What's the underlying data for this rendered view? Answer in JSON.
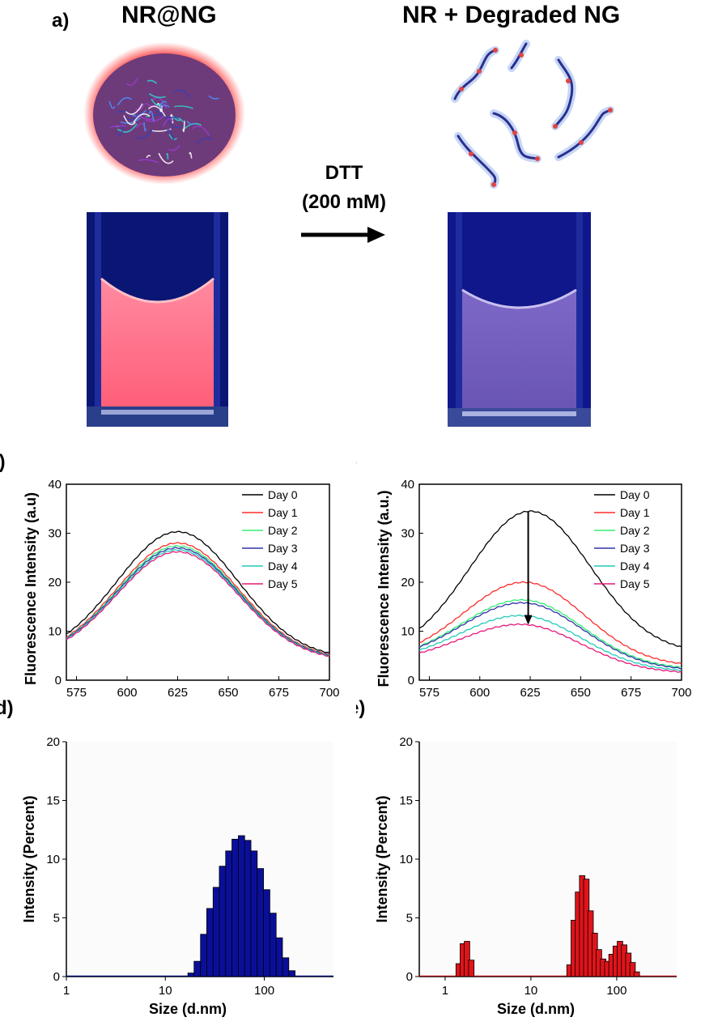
{
  "panel_a": {
    "letter": "a)",
    "left_title": "NR@NG",
    "right_title": "NR + Degraded NG",
    "reagent": "DTT",
    "concentration": "(200 mM)"
  },
  "chart_data": [
    {
      "id": "b",
      "type": "line",
      "letter": "b)",
      "xlabel": "Wavelength (nm)",
      "ylabel": "Fluorescence Intensity (a.u)",
      "xlim": [
        570,
        700
      ],
      "ylim": [
        0,
        40
      ],
      "xticks": [
        575,
        600,
        625,
        650,
        675,
        700
      ],
      "yticks": [
        0,
        10,
        20,
        30,
        40
      ],
      "grid": false,
      "legend_position": "top-right",
      "series": [
        {
          "name": "Day 0",
          "color": "#000000",
          "peak_x": 625,
          "peak": 30.3,
          "start": 4.6,
          "end": 4.4
        },
        {
          "name": "Day 1",
          "color": "#ff2a2a",
          "peak_x": 625,
          "peak": 28.0,
          "start": 4.4,
          "end": 4.2
        },
        {
          "name": "Day 2",
          "color": "#33ee77",
          "peak_x": 625,
          "peak": 27.4,
          "start": 4.3,
          "end": 4.1
        },
        {
          "name": "Day 3",
          "color": "#3333aa",
          "peak_x": 625,
          "peak": 27.0,
          "start": 4.3,
          "end": 4.1
        },
        {
          "name": "Day 4",
          "color": "#22ccbb",
          "peak_x": 625,
          "peak": 26.6,
          "start": 4.2,
          "end": 4.0
        },
        {
          "name": "Day 5",
          "color": "#e6187a",
          "peak_x": 625,
          "peak": 26.2,
          "start": 4.1,
          "end": 3.9
        }
      ]
    },
    {
      "id": "c",
      "type": "line",
      "letter": "c)",
      "xlabel": "Wavelength (nm)",
      "ylabel": "Fluorescence Intensity (a.u.)",
      "xlim": [
        570,
        700
      ],
      "ylim": [
        0,
        40
      ],
      "xticks": [
        575,
        600,
        625,
        650,
        675,
        700
      ],
      "yticks": [
        0,
        10,
        20,
        30,
        40
      ],
      "grid": false,
      "legend_position": "top-right",
      "arrow": {
        "x": 624,
        "y_from": 34.5,
        "y_to": 11.3
      },
      "series": [
        {
          "name": "Day 0",
          "color": "#000000",
          "peak_x": 625,
          "peak": 34.5,
          "start": 5.0,
          "end": 5.5
        },
        {
          "name": "Day 1",
          "color": "#ff2a2a",
          "peak_x": 622,
          "peak": 20.0,
          "start": 4.1,
          "end": 2.8
        },
        {
          "name": "Day 2",
          "color": "#33ee77",
          "peak_x": 621,
          "peak": 16.4,
          "start": 4.0,
          "end": 2.2
        },
        {
          "name": "Day 3",
          "color": "#3333aa",
          "peak_x": 621,
          "peak": 15.8,
          "start": 4.0,
          "end": 2.0
        },
        {
          "name": "Day 4",
          "color": "#22ccbb",
          "peak_x": 620,
          "peak": 13.2,
          "start": 3.8,
          "end": 1.7
        },
        {
          "name": "Day 5",
          "color": "#e6187a",
          "peak_x": 620,
          "peak": 11.4,
          "start": 3.6,
          "end": 1.4
        }
      ]
    },
    {
      "id": "d",
      "type": "bar",
      "letter": "d)",
      "xlabel": "Size (d.nm)",
      "ylabel": "Intensity (Percent)",
      "x_scale": "log",
      "xlim": [
        1,
        500
      ],
      "ylim": [
        0,
        20
      ],
      "xticks": [
        1,
        10,
        100
      ],
      "yticks": [
        0,
        5,
        10,
        15,
        20
      ],
      "bar_color": "#0a0f9a",
      "bins": [
        {
          "size": 18.2,
          "value": 0.3
        },
        {
          "size": 21.0,
          "value": 1.3
        },
        {
          "size": 24.4,
          "value": 3.6
        },
        {
          "size": 28.2,
          "value": 5.8
        },
        {
          "size": 32.7,
          "value": 7.6
        },
        {
          "size": 37.8,
          "value": 9.4
        },
        {
          "size": 43.8,
          "value": 10.7
        },
        {
          "size": 50.7,
          "value": 11.7
        },
        {
          "size": 58.8,
          "value": 12.0
        },
        {
          "size": 68.1,
          "value": 11.6
        },
        {
          "size": 78.8,
          "value": 10.7
        },
        {
          "size": 91.3,
          "value": 9.2
        },
        {
          "size": 105.7,
          "value": 7.4
        },
        {
          "size": 122.4,
          "value": 5.4
        },
        {
          "size": 141.8,
          "value": 3.3
        },
        {
          "size": 164.2,
          "value": 1.6
        },
        {
          "size": 190.1,
          "value": 0.5
        }
      ]
    },
    {
      "id": "e",
      "type": "bar",
      "letter": "e)",
      "xlabel": "Size (d.nm)",
      "ylabel": "Intensity (Percent)",
      "x_scale": "log",
      "xlim": [
        0.5,
        500
      ],
      "ylim": [
        0,
        20
      ],
      "xticks": [
        1,
        10,
        100
      ],
      "yticks": [
        0,
        5,
        10,
        15,
        20
      ],
      "bar_color": "#e0141a",
      "bins": [
        {
          "size": 1.44,
          "value": 1.1
        },
        {
          "size": 1.61,
          "value": 2.8
        },
        {
          "size": 1.8,
          "value": 3.0
        },
        {
          "size": 2.02,
          "value": 1.4
        },
        {
          "size": 28.2,
          "value": 1.0
        },
        {
          "size": 31.6,
          "value": 4.8
        },
        {
          "size": 35.4,
          "value": 7.2
        },
        {
          "size": 39.6,
          "value": 8.6
        },
        {
          "size": 44.3,
          "value": 8.3
        },
        {
          "size": 49.6,
          "value": 5.6
        },
        {
          "size": 55.5,
          "value": 3.7
        },
        {
          "size": 62.1,
          "value": 2.3
        },
        {
          "size": 69.5,
          "value": 1.5
        },
        {
          "size": 77.8,
          "value": 1.3
        },
        {
          "size": 87.1,
          "value": 1.9
        },
        {
          "size": 97.5,
          "value": 2.6
        },
        {
          "size": 109.2,
          "value": 3.0
        },
        {
          "size": 122.2,
          "value": 2.7
        },
        {
          "size": 136.8,
          "value": 2.0
        },
        {
          "size": 153.1,
          "value": 1.2
        },
        {
          "size": 171.4,
          "value": 0.4
        }
      ]
    }
  ]
}
